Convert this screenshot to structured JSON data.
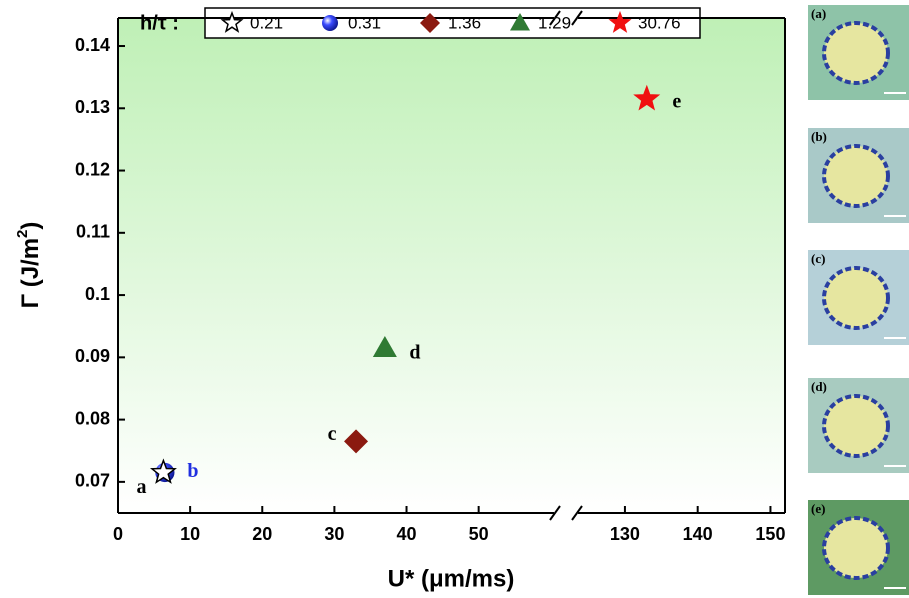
{
  "chart_data": {
    "type": "scatter",
    "legend_title": "h/τ :",
    "xlabel": "U* (μm/ms)",
    "ylabel": [
      "Γ (J/m",
      "2",
      ")"
    ],
    "xlim": [
      0,
      152
    ],
    "xbreak": [
      61,
      123
    ],
    "xticks": [
      0,
      10,
      20,
      30,
      40,
      50,
      130,
      140,
      150
    ],
    "ylim": [
      0.065,
      0.1445
    ],
    "yticks": [
      0.07,
      0.08,
      0.09,
      0.1,
      0.11,
      0.12,
      0.13,
      0.14
    ],
    "series": [
      {
        "name": "0.21",
        "marker": "star",
        "color": "#ffffff",
        "x": [
          6.3
        ],
        "values": [
          0.0715
        ],
        "point_label": "a",
        "label_color": "#000000"
      },
      {
        "name": "0.31",
        "marker": "circle",
        "color": "#1f2fe0",
        "x": [
          6.5
        ],
        "values": [
          0.0715
        ],
        "point_label": "b",
        "label_color": "#1f2fe0"
      },
      {
        "name": "1.36",
        "marker": "diamond",
        "color": "#8b1a10",
        "x": [
          33
        ],
        "values": [
          0.0765
        ],
        "point_label": "c",
        "label_color": "#000000"
      },
      {
        "name": "1.29",
        "marker": "triangle",
        "color": "#2f7a33",
        "x": [
          37
        ],
        "values": [
          0.0915
        ],
        "point_label": "d",
        "label_color": "#000000"
      },
      {
        "name": "30.76",
        "marker": "star",
        "color": "#f01010",
        "x": [
          133
        ],
        "values": [
          0.1315
        ],
        "point_label": "e",
        "label_color": "#000000"
      }
    ],
    "panels": [
      "(a)",
      "(b)",
      "(c)",
      "(d)",
      "(e)"
    ]
  }
}
